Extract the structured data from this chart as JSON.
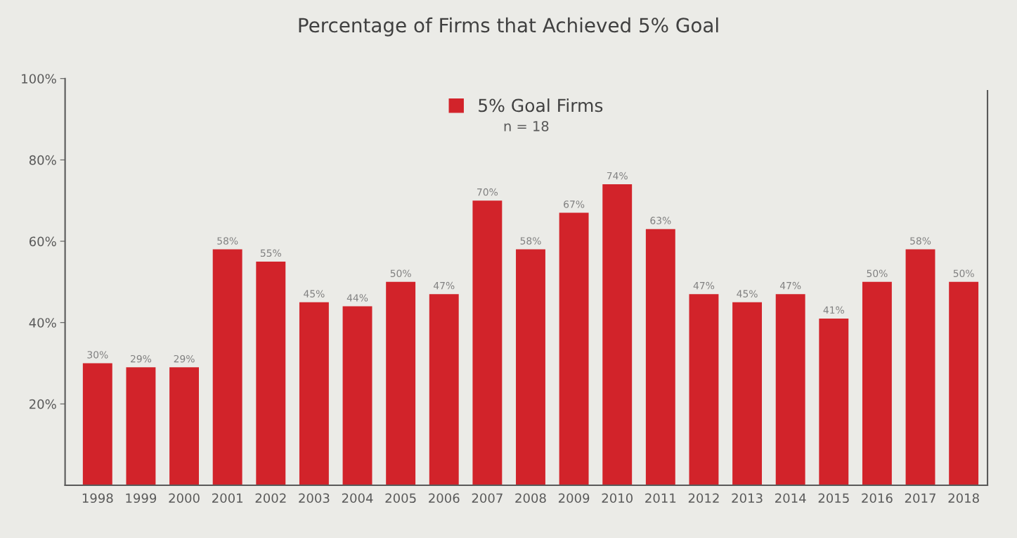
{
  "chart_data": {
    "type": "bar",
    "title": "Percentage of Firms that Achieved 5% Goal",
    "categories": [
      "1998",
      "1999",
      "2000",
      "2001",
      "2002",
      "2003",
      "2004",
      "2005",
      "2006",
      "2007",
      "2008",
      "2009",
      "2010",
      "2011",
      "2012",
      "2013",
      "2014",
      "2015",
      "2016",
      "2017",
      "2018"
    ],
    "series": [
      {
        "name": "5% Goal Firms",
        "color": "#d2232a",
        "values": [
          30,
          29,
          29,
          58,
          55,
          45,
          44,
          50,
          47,
          70,
          58,
          67,
          74,
          63,
          47,
          45,
          47,
          41,
          50,
          58,
          50
        ]
      }
    ],
    "value_labels": [
      "30%",
      "29%",
      "29%",
      "58%",
      "55%",
      "45%",
      "44%",
      "50%",
      "47%",
      "70%",
      "58%",
      "67%",
      "74%",
      "63%",
      "47%",
      "45%",
      "47%",
      "41%",
      "50%",
      "58%",
      "50%"
    ],
    "ylim": [
      0,
      100
    ],
    "yticks": [
      {
        "value": 20,
        "label": "20%"
      },
      {
        "value": 40,
        "label": "40%"
      },
      {
        "value": 60,
        "label": "60%"
      },
      {
        "value": 80,
        "label": "80%"
      },
      {
        "value": 100,
        "label": "100%"
      }
    ],
    "annotations": [
      "n = 18"
    ],
    "legend": "top",
    "grid": false
  }
}
